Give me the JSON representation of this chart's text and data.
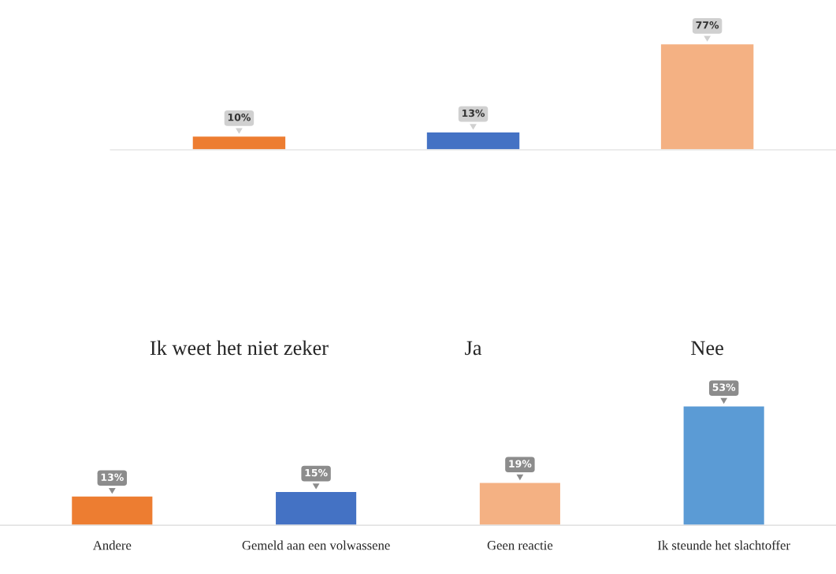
{
  "chart_data": [
    {
      "type": "bar",
      "categories": [
        "Ik weet het niet zeker",
        "Ja",
        "Nee"
      ],
      "values": [
        10,
        13,
        77
      ],
      "colors": [
        "#ed7d31",
        "#4472c4",
        "#f4b183"
      ],
      "value_labels": [
        "10%",
        "13%",
        "77%"
      ],
      "grid": false,
      "legend": false
    },
    {
      "type": "bar",
      "categories": [
        "Andere",
        "Gemeld aan een volwassene",
        "Geen reactie",
        "Ik steunde het slachtoffer"
      ],
      "values": [
        13,
        15,
        19,
        53
      ],
      "colors": [
        "#ed7d31",
        "#4472c4",
        "#f4b183",
        "#5b9bd5"
      ],
      "value_labels": [
        "13%",
        "15%",
        "19%",
        "53%"
      ],
      "grid": false,
      "legend": false
    }
  ]
}
